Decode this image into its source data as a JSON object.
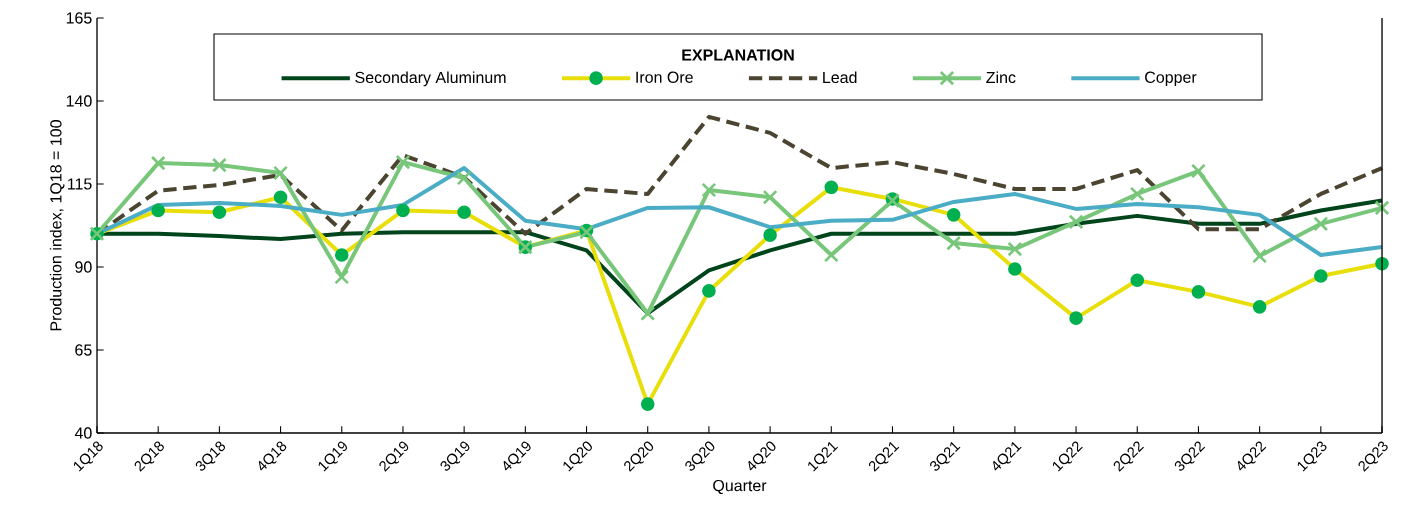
{
  "chart_data": {
    "type": "line",
    "xlabel": "Quarter",
    "ylabel": "Production index, 1Q18 = 100",
    "legend_title": "EXPLANATION",
    "legend": "top",
    "grid": false,
    "categories": [
      "1Q18",
      "2Q18",
      "3Q18",
      "4Q18",
      "1Q19",
      "2Q19",
      "3Q19",
      "4Q19",
      "1Q20",
      "2Q20",
      "3Q20",
      "4Q20",
      "1Q21",
      "2Q21",
      "3Q21",
      "4Q21",
      "1Q22",
      "2Q22",
      "3Q22",
      "4Q22",
      "1Q23",
      "2Q23"
    ],
    "ylim": [
      40,
      165
    ],
    "yticks": [
      40,
      65,
      90,
      115,
      140,
      165
    ],
    "series": [
      {
        "name": "Secondary Aluminum",
        "color": "#00441b",
        "marker": "none",
        "line_style": "solid",
        "values": [
          100,
          100,
          99.3,
          98.4,
          100,
          100.5,
          100.5,
          100.5,
          95,
          76,
          89,
          95,
          100,
          100,
          100,
          100,
          103,
          105.4,
          103,
          103,
          107,
          110
        ]
      },
      {
        "name": "Iron Ore",
        "color": "#e8df0a",
        "marker": "circle",
        "line_style": "solid",
        "values": [
          100,
          107,
          106.5,
          111,
          93.6,
          107,
          106.5,
          96,
          101,
          48.7,
          82.8,
          99.6,
          114,
          110.5,
          105.7,
          89.4,
          74.6,
          86,
          82.5,
          78,
          87.3,
          91
        ]
      },
      {
        "name": "Lead",
        "color": "#4a4430",
        "marker": "none",
        "line_style": "dashed",
        "values": [
          100,
          113,
          114.7,
          117.7,
          101,
          123.7,
          117,
          100,
          113.5,
          112,
          135.2,
          130.4,
          119.8,
          121.6,
          118,
          113.5,
          113.5,
          119.2,
          101.4,
          101.4,
          112,
          119.8
        ]
      },
      {
        "name": "Zinc",
        "color": "#77c67a",
        "marker": "cross",
        "line_style": "solid",
        "values": [
          100,
          121.3,
          120.7,
          118.3,
          87,
          121.6,
          116.8,
          96,
          100.5,
          76,
          113.2,
          111,
          93.6,
          110,
          97.2,
          95.4,
          103.6,
          112,
          118.9,
          93.3,
          103,
          107.8
        ]
      },
      {
        "name": "Copper",
        "color": "#4bacc6",
        "marker": "none",
        "line_style": "solid",
        "values": [
          100,
          108.7,
          109.3,
          108.4,
          105.7,
          108.7,
          119.8,
          103.9,
          101.4,
          107.8,
          108,
          102,
          103.9,
          104.2,
          109.6,
          112,
          107.5,
          109,
          108,
          105.7,
          93.6,
          96
        ]
      }
    ]
  }
}
